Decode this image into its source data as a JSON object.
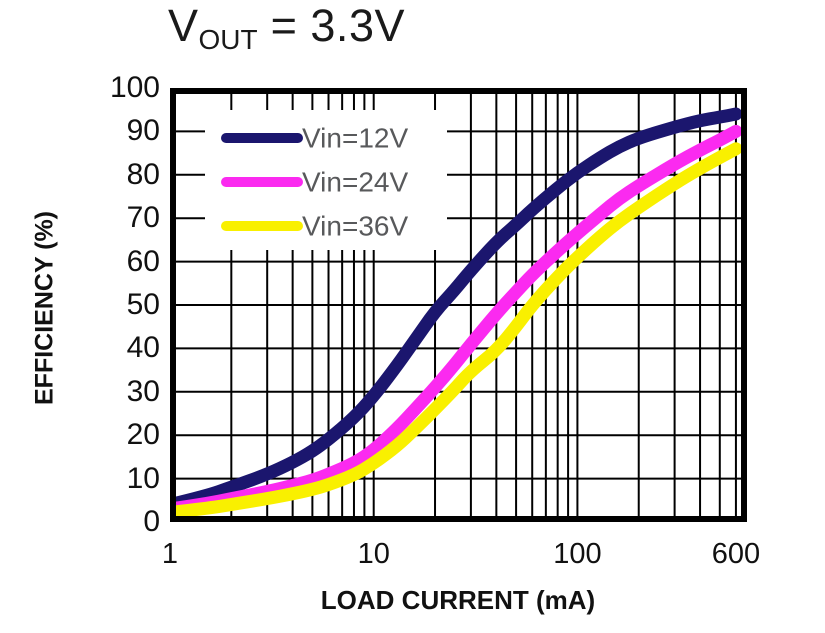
{
  "title": {
    "prefix": "V",
    "subscript": "OUT",
    "suffix": " = 3.3V"
  },
  "chart_data": {
    "type": "line",
    "x_scale": "log",
    "title": "VOUT = 3.3V",
    "xlabel": "LOAD CURRENT (mA)",
    "ylabel": "EFFICIENCY (%)",
    "xlim": [
      1,
      600
    ],
    "ylim": [
      0,
      100
    ],
    "grid": "on",
    "grid_color": "#000000",
    "x_ticks": [
      {
        "value": 1,
        "label": "1"
      },
      {
        "value": 10,
        "label": "10"
      },
      {
        "value": 100,
        "label": "100"
      },
      {
        "value": 600,
        "label": "600"
      }
    ],
    "y_ticks": [
      {
        "value": 0,
        "label": "0"
      },
      {
        "value": 10,
        "label": "10"
      },
      {
        "value": 20,
        "label": "20"
      },
      {
        "value": 30,
        "label": "30"
      },
      {
        "value": 40,
        "label": "40"
      },
      {
        "value": 50,
        "label": "50"
      },
      {
        "value": 60,
        "label": "60"
      },
      {
        "value": 70,
        "label": "70"
      },
      {
        "value": 80,
        "label": "80"
      },
      {
        "value": 90,
        "label": "90"
      },
      {
        "value": 100,
        "label": "100"
      }
    ],
    "x_gridlines": [
      2,
      3,
      4,
      5,
      6,
      7,
      8,
      9,
      10,
      20,
      30,
      40,
      50,
      60,
      70,
      80,
      90,
      100,
      200,
      300,
      400,
      500,
      600
    ],
    "y_gridlines": [
      10,
      20,
      30,
      40,
      50,
      60,
      70,
      80,
      90
    ],
    "legend": {
      "position": "upper-left",
      "text_color": "#58595b",
      "bg": "#ffffff"
    },
    "series": [
      {
        "name": "Vin=12V",
        "color": "#1b166e",
        "points": [
          [
            1,
            4
          ],
          [
            1.5,
            6
          ],
          [
            2,
            8
          ],
          [
            3,
            11
          ],
          [
            4,
            13.7
          ],
          [
            5,
            16.3
          ],
          [
            6,
            19
          ],
          [
            8,
            24
          ],
          [
            10,
            29
          ],
          [
            13,
            36
          ],
          [
            16,
            42
          ],
          [
            20,
            48.5
          ],
          [
            25,
            53.5
          ],
          [
            30,
            58
          ],
          [
            40,
            64.5
          ],
          [
            50,
            68.5
          ],
          [
            60,
            72
          ],
          [
            80,
            77
          ],
          [
            100,
            80.5
          ],
          [
            130,
            84
          ],
          [
            160,
            86.5
          ],
          [
            200,
            88.5
          ],
          [
            300,
            91
          ],
          [
            400,
            92.5
          ],
          [
            500,
            93.3
          ],
          [
            600,
            94
          ]
        ]
      },
      {
        "name": "Vin=24V",
        "color": "#fb2af0",
        "points": [
          [
            1,
            3
          ],
          [
            1.5,
            4.2
          ],
          [
            2,
            5.4
          ],
          [
            3,
            7
          ],
          [
            4,
            8.4
          ],
          [
            5,
            9.6
          ],
          [
            6,
            11
          ],
          [
            8,
            13.5
          ],
          [
            10,
            16.5
          ],
          [
            13,
            21.5
          ],
          [
            16,
            26
          ],
          [
            20,
            31
          ],
          [
            25,
            36.3
          ],
          [
            30,
            41
          ],
          [
            40,
            48
          ],
          [
            50,
            53
          ],
          [
            60,
            57
          ],
          [
            80,
            62.5
          ],
          [
            100,
            66.5
          ],
          [
            130,
            71
          ],
          [
            160,
            74.5
          ],
          [
            200,
            77.5
          ],
          [
            300,
            82.5
          ],
          [
            400,
            85.7
          ],
          [
            500,
            88
          ],
          [
            600,
            90
          ]
        ]
      },
      {
        "name": "Vin=36V",
        "color": "#f9f000",
        "points": [
          [
            1,
            2.2
          ],
          [
            1.5,
            3.1
          ],
          [
            2,
            4
          ],
          [
            3,
            5.4
          ],
          [
            4,
            6.5
          ],
          [
            5,
            7.5
          ],
          [
            6,
            8.6
          ],
          [
            8,
            10.8
          ],
          [
            10,
            13.5
          ],
          [
            13,
            17.5
          ],
          [
            16,
            21.5
          ],
          [
            20,
            26
          ],
          [
            25,
            30.7
          ],
          [
            30,
            34.8
          ],
          [
            40,
            39.5
          ],
          [
            50,
            45
          ],
          [
            60,
            50
          ],
          [
            80,
            56.5
          ],
          [
            100,
            61
          ],
          [
            130,
            65.8
          ],
          [
            160,
            69.3
          ],
          [
            200,
            72.5
          ],
          [
            300,
            78
          ],
          [
            400,
            81.5
          ],
          [
            500,
            84
          ],
          [
            600,
            86
          ]
        ]
      }
    ]
  }
}
